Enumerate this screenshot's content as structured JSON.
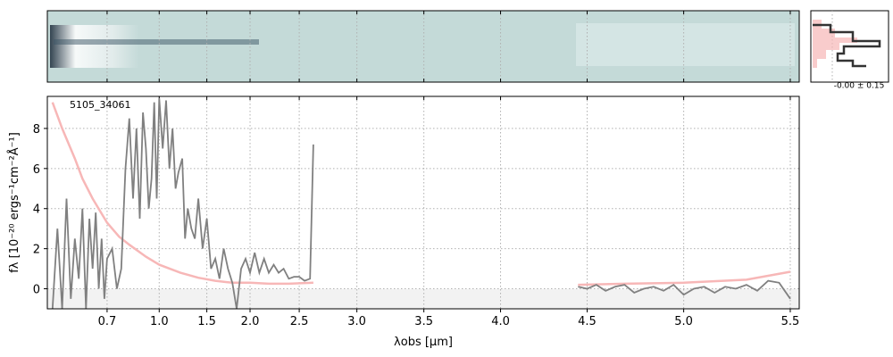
{
  "chart_data": {
    "type": "line",
    "annotation": "5105_34061",
    "hist_label": "-0.00 ± 0.15",
    "xlabel": "λobs [μm]",
    "ylabel": "fλ [10⁻²⁰ ergs⁻¹cm⁻²Å⁻¹]",
    "xlim": [
      0.54,
      5.54
    ],
    "ylim": [
      -1,
      9.6
    ],
    "xticks": [
      0.7,
      {
        "value": 1,
        "label": "1.0"
      },
      1.5,
      {
        "value": 2,
        "label": "2.0"
      },
      2.5,
      {
        "value": 3,
        "label": "3.0"
      },
      3.5,
      {
        "value": 4,
        "label": "4.0"
      },
      4.5,
      {
        "value": 5,
        "label": "5.0"
      },
      5.5
    ],
    "yticks": [
      0,
      2,
      4,
      6,
      8
    ],
    "grid": true,
    "series": [
      {
        "color": "#f7b7b7",
        "x": [
          0.55,
          0.57,
          0.6,
          0.62,
          0.65,
          0.7,
          0.75,
          0.8,
          0.9,
          1.0,
          1.2,
          1.4,
          1.6,
          1.8,
          2.0,
          2.2,
          2.4,
          2.63,
          null,
          4.45,
          4.7,
          5.0,
          5.3,
          5.5
        ],
        "values": [
          9.3,
          8,
          6.5,
          5.5,
          4.5,
          3.3,
          2.6,
          2.2,
          1.6,
          1.2,
          0.8,
          0.55,
          0.4,
          0.3,
          0.3,
          0.25,
          0.25,
          0.3,
          null,
          0.2,
          0.25,
          0.3,
          0.45,
          0.85
        ]
      },
      {
        "color": "#808080",
        "x": [
          0.55,
          0.56,
          0.57,
          0.58,
          0.59,
          0.6,
          0.61,
          0.62,
          0.63,
          0.64,
          0.65,
          0.66,
          0.67,
          0.68,
          0.69,
          0.7,
          0.72,
          0.74,
          0.76,
          0.78,
          0.8,
          0.82,
          0.84,
          0.86,
          0.88,
          0.9,
          0.92,
          0.94,
          0.96,
          0.98,
          1.0,
          1.03,
          1.06,
          1.09,
          1.12,
          1.15,
          1.18,
          1.22,
          1.25,
          1.28,
          1.32,
          1.36,
          1.4,
          1.45,
          1.5,
          1.55,
          1.6,
          1.65,
          1.7,
          1.75,
          1.8,
          1.85,
          1.9,
          1.95,
          2.0,
          2.05,
          2.1,
          2.15,
          2.2,
          2.25,
          2.3,
          2.35,
          2.4,
          2.45,
          2.5,
          2.55,
          2.6,
          2.63,
          null,
          4.45,
          4.5,
          4.55,
          4.6,
          4.65,
          4.7,
          4.75,
          4.8,
          4.85,
          4.9,
          4.95,
          5.0,
          5.05,
          5.1,
          5.15,
          5.2,
          5.25,
          5.3,
          5.35,
          5.4,
          5.45,
          5.5
        ],
        "values": [
          -1,
          3,
          -1,
          4.5,
          -0.5,
          2.5,
          0.5,
          4,
          -1,
          3.5,
          1,
          3.8,
          0,
          2.5,
          -0.5,
          1.5,
          2,
          0,
          1,
          6,
          8.5,
          4.5,
          8,
          3.5,
          8.8,
          7,
          4,
          5.5,
          9.3,
          4.5,
          9.5,
          7,
          9.4,
          6,
          8,
          5,
          5.8,
          6.5,
          2.5,
          4,
          3,
          2.5,
          4.5,
          2,
          3.5,
          1,
          1.5,
          0.5,
          2,
          1,
          0.3,
          -1,
          1,
          1.5,
          0.8,
          1.8,
          0.8,
          1.5,
          0.8,
          1.2,
          0.8,
          1,
          0.5,
          0.6,
          0.6,
          0.4,
          0.5,
          7.2,
          null,
          0.1,
          0,
          0.2,
          -0.1,
          0.1,
          0.2,
          -0.2,
          0,
          0.1,
          -0.1,
          0.2,
          -0.3,
          0,
          0.1,
          -0.2,
          0.1,
          0,
          0.2,
          -0.1,
          0.4,
          0.3,
          -0.5
        ]
      }
    ]
  }
}
